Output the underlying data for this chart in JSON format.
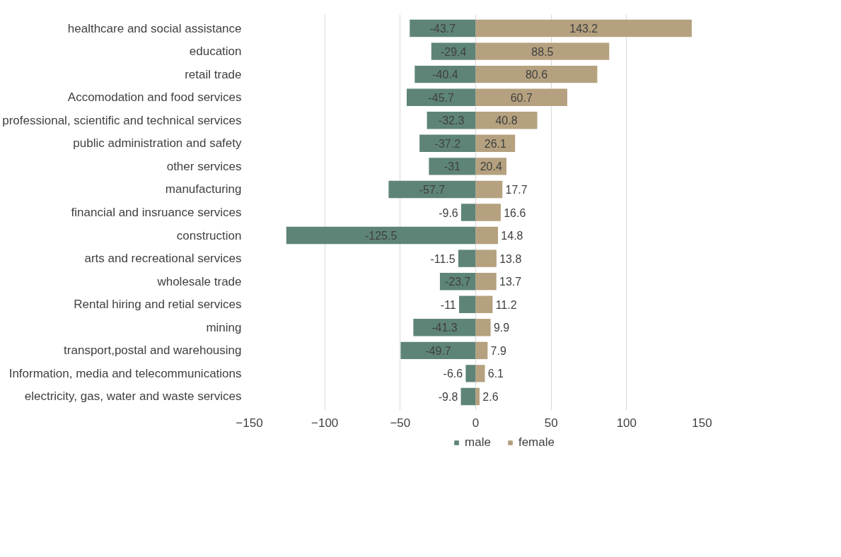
{
  "chart_data": {
    "type": "bar",
    "orientation": "horizontal",
    "categories": [
      "healthcare and social assistance",
      "education",
      "retail trade",
      "Accomodation and food services",
      "professional, scientific and technical services",
      "public administration and safety",
      "other services",
      "manufacturing",
      "financial and insruance services",
      "construction",
      "arts and recreational services",
      "wholesale trade",
      "Rental hiring and retial services",
      "mining",
      "transport,postal and warehousing",
      "Information, media and telecommunications",
      "electricity, gas, water and waste services"
    ],
    "series": [
      {
        "name": "male",
        "color": "#5e8478",
        "values": [
          -43.7,
          -29.4,
          -40.4,
          -45.7,
          -32.3,
          -37.2,
          -31,
          -57.7,
          -9.6,
          -125.5,
          -11.5,
          -23.7,
          -11,
          -41.3,
          -49.7,
          -6.6,
          -9.8
        ]
      },
      {
        "name": "female",
        "color": "#b5a17f",
        "values": [
          143.2,
          88.5,
          80.6,
          60.7,
          40.8,
          26.1,
          20.4,
          17.7,
          16.6,
          14.8,
          13.8,
          13.7,
          11.2,
          9.9,
          7.9,
          6.1,
          2.6
        ]
      }
    ],
    "xlim": [
      -150,
      150
    ],
    "xticks": [
      -150,
      -100,
      -50,
      0,
      50,
      100,
      150
    ],
    "data_labels": true,
    "stacked": true,
    "grid": "x",
    "legend": "bottom"
  }
}
